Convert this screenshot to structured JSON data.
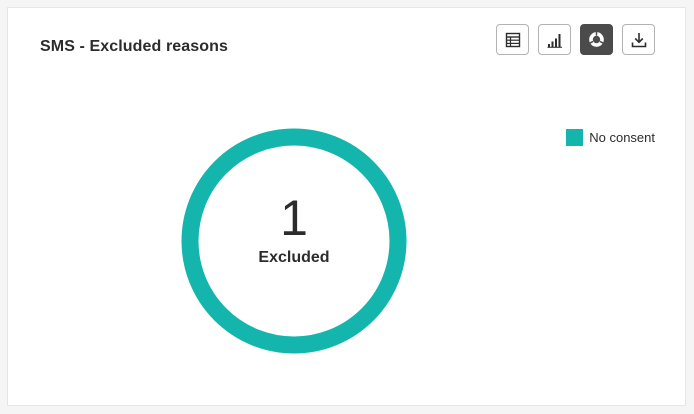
{
  "card": {
    "title": "SMS - Excluded reasons"
  },
  "toolbar": {
    "buttons": [
      {
        "name": "table-view",
        "icon": "table-icon",
        "active": false
      },
      {
        "name": "bar-chart-view",
        "icon": "bar-chart-icon",
        "active": false
      },
      {
        "name": "donut-chart-view",
        "icon": "donut-chart-icon",
        "active": true
      },
      {
        "name": "download",
        "icon": "download-icon",
        "active": false
      }
    ]
  },
  "colors": {
    "accent": "#14b5ad",
    "active_button": "#4b4b4b"
  },
  "chart_data": {
    "type": "pie",
    "variant": "donut",
    "center": {
      "value": "1",
      "label": "Excluded"
    },
    "legend_position": "top-right",
    "slices": [
      {
        "label": "No consent",
        "value": 1,
        "color": "#14b5ad"
      }
    ]
  }
}
